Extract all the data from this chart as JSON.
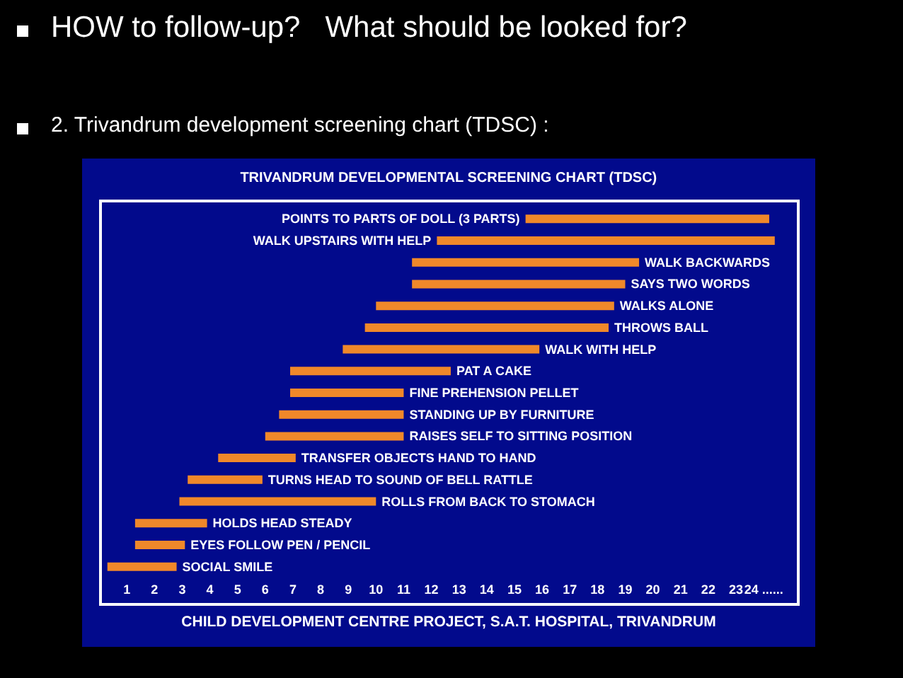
{
  "chart_data": {
    "type": "bar",
    "orientation": "horizontal",
    "title": "HOW to follow-up?   What should be looked for?",
    "subtitle": "2. Trivandrum development screening chart (TDSC) :",
    "annotations": [
      "TRIVANDRUM DEVELOPMENTAL SCREENING CHART (TDSC)",
      "CHILD DEVELOPMENT CENTRE PROJECT, S.A.T. HOSPITAL, TRIVANDRUM"
    ],
    "categories": [
      "POINTS TO PARTS OF DOLL (3 PARTS)",
      "WALK UPSTAIRS WITH HELP",
      "WALK BACKWARDS",
      "SAYS TWO WORDS",
      "WALKS ALONE",
      "THROWS BALL",
      "WALK WITH HELP",
      "PAT A CAKE",
      "FINE PREHENSION PELLET",
      "STANDING UP BY FURNITURE",
      "RAISES SELF TO SITTING POSITION",
      "TRANSFER OBJECTS HAND TO HAND",
      "TURNS HEAD TO SOUND OF BELL RATTLE",
      "ROLLS FROM BACK TO STOMACH",
      "HOLDS HEAD STEADY",
      "EYES FOLLOW PEN / PENCIL",
      "SOCIAL SMILE"
    ],
    "base": [
      15.4,
      12.2,
      11.3,
      11.3,
      10.0,
      9.6,
      8.8,
      6.9,
      6.9,
      6.5,
      6.0,
      4.3,
      3.2,
      2.9,
      1.3,
      1.3,
      0.3
    ],
    "values": [
      8.8,
      12.2,
      8.2,
      7.7,
      8.6,
      8.8,
      7.1,
      5.8,
      4.1,
      4.5,
      5.0,
      2.8,
      2.7,
      7.1,
      2.6,
      1.8,
      2.5
    ],
    "color": "#f0882a",
    "xlim": [
      0,
      25.3
    ],
    "xticks": [
      1,
      2,
      3,
      4,
      5,
      6,
      7,
      8,
      9,
      10,
      11,
      12,
      13,
      14,
      15,
      16,
      17,
      18,
      19,
      20,
      21,
      22,
      23,
      {
        "value": 24,
        "label": "24 ......"
      }
    ],
    "grid": false
  }
}
